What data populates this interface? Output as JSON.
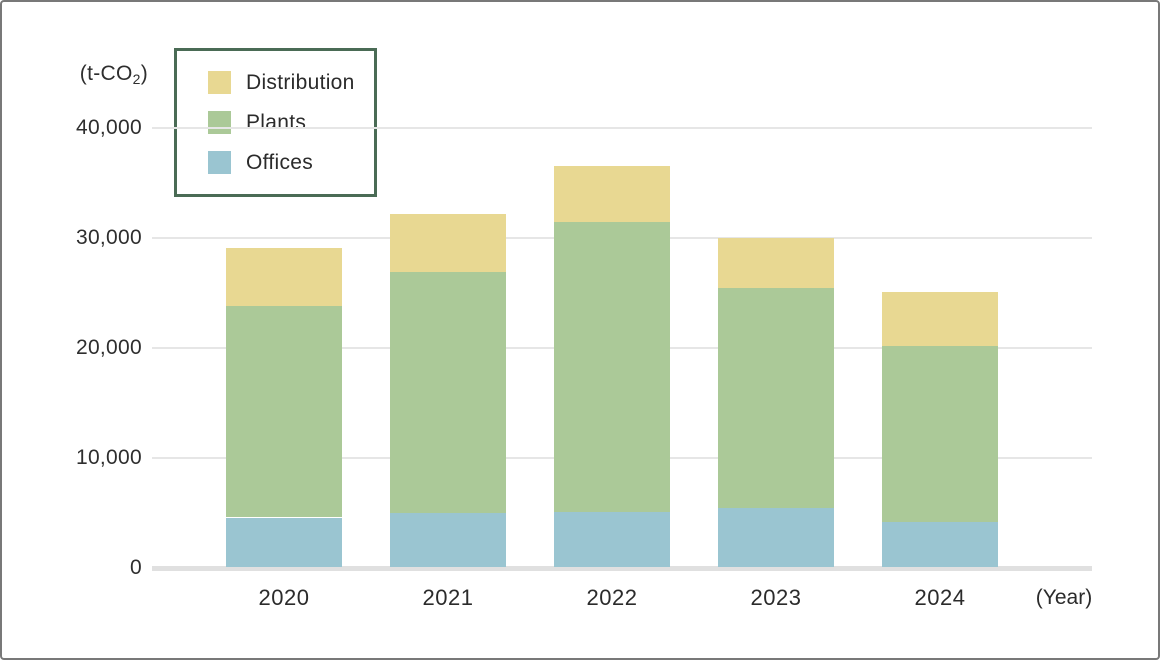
{
  "chart_data": {
    "type": "bar",
    "stacked": true,
    "title": "",
    "unit": {
      "prefix": "(t-CO",
      "sub": "2",
      "suffix": ")"
    },
    "x_axis_label": "(Year)",
    "categories": [
      "2020",
      "2021",
      "2022",
      "2023",
      "2024"
    ],
    "series": [
      {
        "name": "Offices",
        "color": "#9ac5d1",
        "values": [
          4500,
          4900,
          5000,
          5400,
          4100
        ]
      },
      {
        "name": "Plants",
        "color": "#abc998",
        "values": [
          19200,
          21900,
          26400,
          20000,
          16000
        ]
      },
      {
        "name": "Distribution",
        "color": "#e8d892",
        "values": [
          5300,
          5300,
          5100,
          4500,
          4900
        ]
      }
    ],
    "totals": [
      29000,
      32100,
      36500,
      29900,
      25000
    ],
    "y_ticks": [
      "0",
      "10,000",
      "20,000",
      "30,000",
      "40,000"
    ],
    "y_tick_values": [
      0,
      10000,
      20000,
      30000,
      40000
    ],
    "ylim": [
      0,
      44000
    ],
    "grid": true,
    "legend_position": "top-left",
    "legend_order": [
      "Distribution",
      "Plants",
      "Offices"
    ],
    "colors": {
      "legend_border": "#4a6b55",
      "gridline": "#e6e6e6",
      "axis_line": "#e0e0e0",
      "frame_border": "#787878",
      "text": "#2b2b2b"
    }
  }
}
